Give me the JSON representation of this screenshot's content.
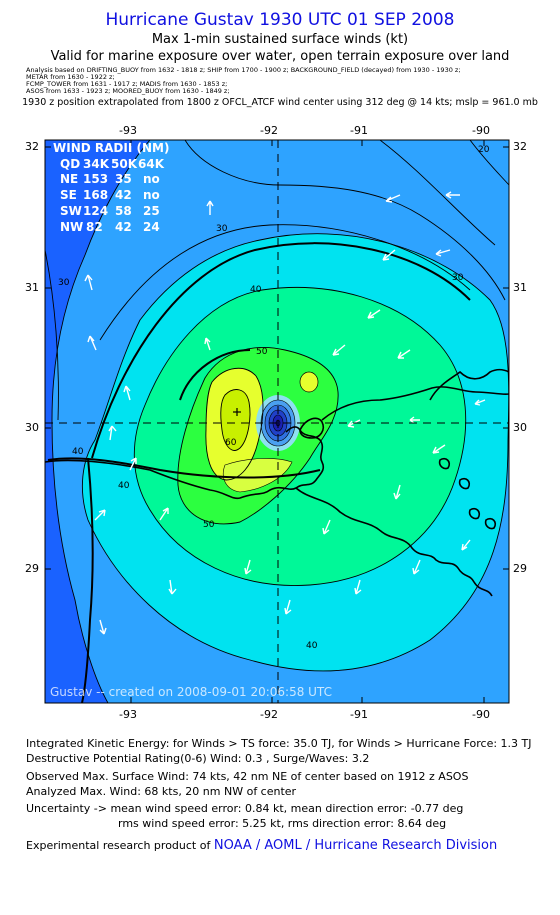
{
  "header": {
    "title": "Hurricane Gustav 1930 UTC 01 SEP 2008",
    "subtitle1": "Max 1-min sustained surface winds (kt)",
    "subtitle2": "Valid for marine exposure over water, open terrain exposure over land",
    "analysis_lines": [
      "Analysis based on DRIFTING_BUOY from 1632 - 1818 z;  SHIP from 1700 - 1900 z;  BACKGROUND_FIELD (decayed) from 1930 - 1930 z;",
      "METAR from 1630 - 1922 z;",
      "FCMP_TOWER from 1631 - 1917 z;  MADIS from 1630 - 1853 z;",
      "ASOS from 1633 - 1923 z;  MOORED_BUOY from 1630 - 1849 z;"
    ],
    "position_note": "1930 z position extrapolated from 1800 z OFCL_ATCF wind center using 312 deg @ 14 kts;  mslp = 961.0 mb"
  },
  "map": {
    "lon_labels": [
      "-93",
      "-92",
      "-91",
      "-90"
    ],
    "lat_labels": [
      "32",
      "31",
      "30",
      "29"
    ],
    "contour_labels": [
      "20",
      "30",
      "30",
      "30",
      "40",
      "40",
      "40",
      "40",
      "50",
      "50",
      "60"
    ],
    "watermark": "Gustav -- created on 2008-09-01 20:06:58 UTC",
    "colors": {
      "c20": "#1a62ff",
      "c30": "#2ea3ff",
      "c40": "#00e3f0",
      "c50": "#00f898",
      "c60": "#2cff40",
      "c70": "#e6ff2e",
      "c80": "#b0f000",
      "eye": "#2030d0"
    }
  },
  "wind_radii": {
    "title": "WIND RADII (NM)",
    "header": [
      "QD",
      "34K",
      "50K",
      "64K"
    ],
    "rows": [
      [
        "NE",
        "153",
        "35",
        "no"
      ],
      [
        "SE",
        "168",
        "42",
        "no"
      ],
      [
        "SW",
        "124",
        "58",
        "25"
      ],
      [
        "NW",
        "82",
        "42",
        "24"
      ]
    ]
  },
  "footer": {
    "ike": "Integrated Kinetic Energy:  for Winds > TS force: 35.0 TJ,  for Winds > Hurricane Force: 1.3 TJ",
    "dpr": "Destructive Potential Rating(0-6)   Wind: 0.3 , Surge/Waves: 3.2",
    "observed": "Observed Max. Surface Wind: 74 kts, 42 nm NE of center based on 1912 z ASOS",
    "analyzed": "Analyzed Max. Wind: 68 kts, 20 nm NW of center",
    "uncertainty1": "Uncertainty -> mean wind speed error: 0.84 kt,   mean direction error:  -0.77 deg",
    "uncertainty2": "rms wind speed error: 5.25 kt,   rms direction error: 8.64 deg",
    "credit_prefix": "Experimental research product of ",
    "credit_org": "NOAA / AOML / Hurricane Research Division"
  }
}
